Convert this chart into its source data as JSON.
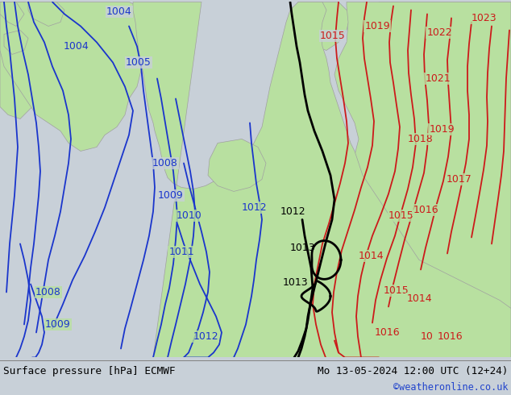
{
  "title_left": "Surface pressure [hPa] ECMWF",
  "title_right": "Mo 13-05-2024 12:00 UTC (12+24)",
  "credit": "©weatheronline.co.uk",
  "sea_color": "#c8d0d8",
  "land_color": "#b8e0a0",
  "land_border_color": "#a0a0a0",
  "blue_line_color": "#1a35cc",
  "red_line_color": "#cc1a1a",
  "black_line_color": "#000000",
  "bottom_bar_color": "#e8e8e8",
  "text_color_black": "#000000",
  "text_color_blue": "#2244cc",
  "font_size_label": 9,
  "font_size_credit": 8,
  "lw_blue": 1.3,
  "lw_red": 1.3,
  "lw_black": 2.0
}
